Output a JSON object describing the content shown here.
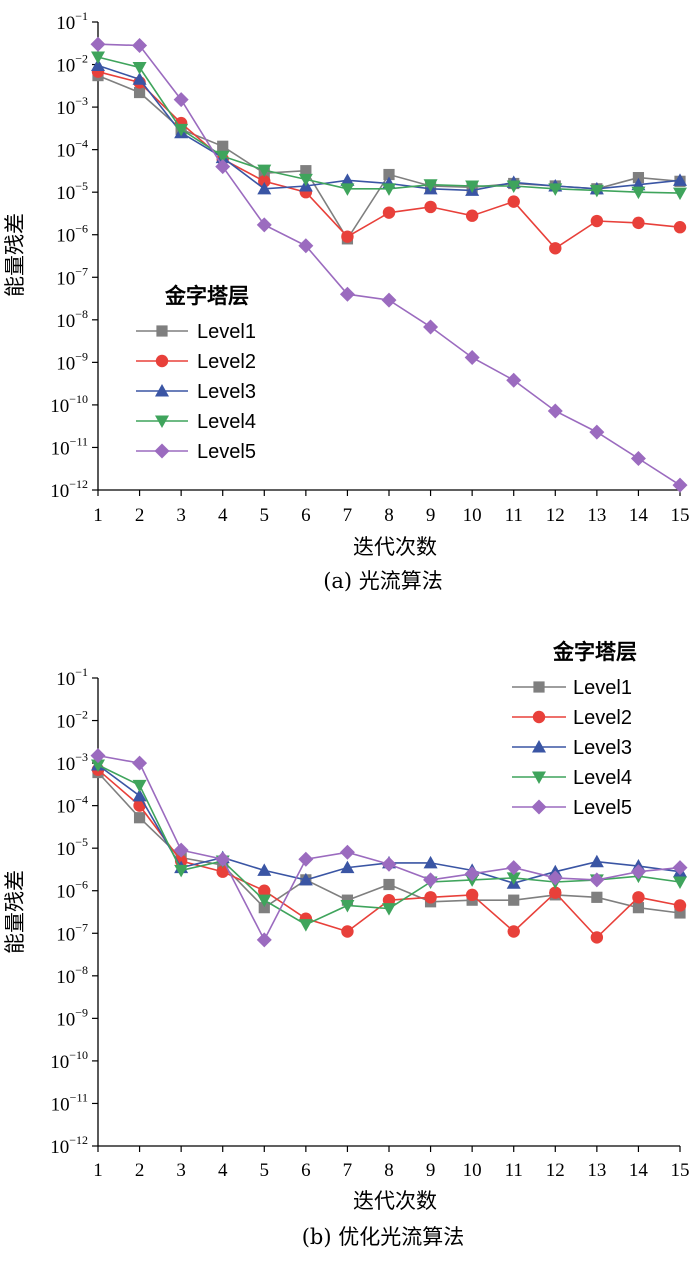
{
  "chart_data": [
    {
      "type": "line",
      "yscale": "log",
      "caption": "(a) 光流算法",
      "xlabel": "迭代次数",
      "ylabel": "能量残差",
      "x": [
        1,
        2,
        3,
        4,
        5,
        6,
        7,
        8,
        9,
        10,
        11,
        12,
        13,
        14,
        15
      ],
      "xlim": [
        1,
        15
      ],
      "ylim_exponent": [
        -12,
        -1
      ],
      "ytick_exponents": [
        -1,
        -2,
        -3,
        -4,
        -5,
        -6,
        -7,
        -8,
        -9,
        -10,
        -11,
        -12
      ],
      "ytick_base": "10",
      "legend": {
        "title": "金字塔层",
        "placement": "left-middle"
      },
      "series": [
        {
          "name": "Level1",
          "color": "#7f7f7f",
          "marker": "square",
          "values": [
            0.0055,
            0.0022,
            0.0003,
            0.00012,
            2.8e-05,
            3.2e-05,
            8e-07,
            2.6e-05,
            1.4e-05,
            1.3e-05,
            1.6e-05,
            1.4e-05,
            1.2e-05,
            2.2e-05,
            1.8e-05
          ]
        },
        {
          "name": "Level2",
          "color": "#e8403a",
          "marker": "circle",
          "values": [
            0.0068,
            0.0038,
            0.00042,
            6e-05,
            1.8e-05,
            1e-05,
            9e-07,
            3.3e-06,
            4.5e-06,
            2.8e-06,
            6e-06,
            4.8e-07,
            2.1e-06,
            1.9e-06,
            1.5e-06
          ]
        },
        {
          "name": "Level3",
          "color": "#3a55a4",
          "marker": "triangle-up",
          "values": [
            0.0095,
            0.0045,
            0.00025,
            6.5e-05,
            1.2e-05,
            1.4e-05,
            1.9e-05,
            1.6e-05,
            1.2e-05,
            1.1e-05,
            1.7e-05,
            1.4e-05,
            1.2e-05,
            1.5e-05,
            1.9e-05
          ]
        },
        {
          "name": "Level4",
          "color": "#3fa45c",
          "marker": "triangle-down",
          "values": [
            0.015,
            0.0085,
            0.0003,
            7e-05,
            3.3e-05,
            2e-05,
            1.2e-05,
            1.2e-05,
            1.5e-05,
            1.4e-05,
            1.4e-05,
            1.2e-05,
            1.1e-05,
            1e-05,
            9.5e-06
          ]
        },
        {
          "name": "Level5",
          "color": "#9b6bbf",
          "marker": "diamond",
          "values": [
            0.03,
            0.028,
            0.0015,
            4e-05,
            1.7e-06,
            5.5e-07,
            4e-08,
            2.9e-08,
            6.8e-09,
            1.3e-09,
            3.8e-10,
            7.2e-11,
            2.3e-11,
            5.5e-12,
            1.3e-12
          ]
        }
      ]
    },
    {
      "type": "line",
      "yscale": "log",
      "caption": "(b) 优化光流算法",
      "xlabel": "迭代次数",
      "ylabel": "能量残差",
      "x": [
        1,
        2,
        3,
        4,
        5,
        6,
        7,
        8,
        9,
        10,
        11,
        12,
        13,
        14,
        15
      ],
      "xlim": [
        1,
        15
      ],
      "ylim_exponent": [
        -12,
        -1
      ],
      "ytick_exponents": [
        -1,
        -2,
        -3,
        -4,
        -5,
        -6,
        -7,
        -8,
        -9,
        -10,
        -11,
        -12
      ],
      "ytick_base": "10",
      "legend": {
        "title": "金字塔层",
        "placement": "top-right"
      },
      "series": [
        {
          "name": "Level1",
          "color": "#7f7f7f",
          "marker": "square",
          "values": [
            0.0006,
            5.2e-05,
            6e-06,
            4e-06,
            4e-07,
            1.8e-06,
            6e-07,
            1.4e-06,
            5.5e-07,
            6e-07,
            6e-07,
            8e-07,
            7e-07,
            4e-07,
            3e-07
          ]
        },
        {
          "name": "Level2",
          "color": "#e8403a",
          "marker": "circle",
          "values": [
            0.0007,
            0.0001,
            5e-06,
            2.8e-06,
            1e-06,
            2.2e-07,
            1.1e-07,
            6e-07,
            7e-07,
            8e-07,
            1.1e-07,
            9e-07,
            8e-08,
            7e-07,
            4.5e-07
          ]
        },
        {
          "name": "Level3",
          "color": "#3a55a4",
          "marker": "triangle-up",
          "values": [
            0.0009,
            0.00017,
            3.5e-06,
            6e-06,
            3e-06,
            1.8e-06,
            3.5e-06,
            4.5e-06,
            4.5e-06,
            3e-06,
            1.5e-06,
            2.8e-06,
            4.8e-06,
            3.8e-06,
            2.8e-06
          ]
        },
        {
          "name": "Level4",
          "color": "#3fa45c",
          "marker": "triangle-down",
          "values": [
            0.0009,
            0.0003,
            3e-06,
            5e-06,
            6e-07,
            1.6e-07,
            4.5e-07,
            3.8e-07,
            1.6e-06,
            1.8e-06,
            2e-06,
            1.6e-06,
            1.8e-06,
            2.2e-06,
            1.6e-06
          ]
        },
        {
          "name": "Level5",
          "color": "#9b6bbf",
          "marker": "diamond",
          "values": [
            0.0015,
            0.001,
            9e-06,
            5.5e-06,
            7e-08,
            5.5e-06,
            8e-06,
            4.2e-06,
            1.8e-06,
            2.5e-06,
            3.5e-06,
            2e-06,
            1.8e-06,
            2.8e-06,
            3.5e-06
          ]
        }
      ]
    }
  ]
}
